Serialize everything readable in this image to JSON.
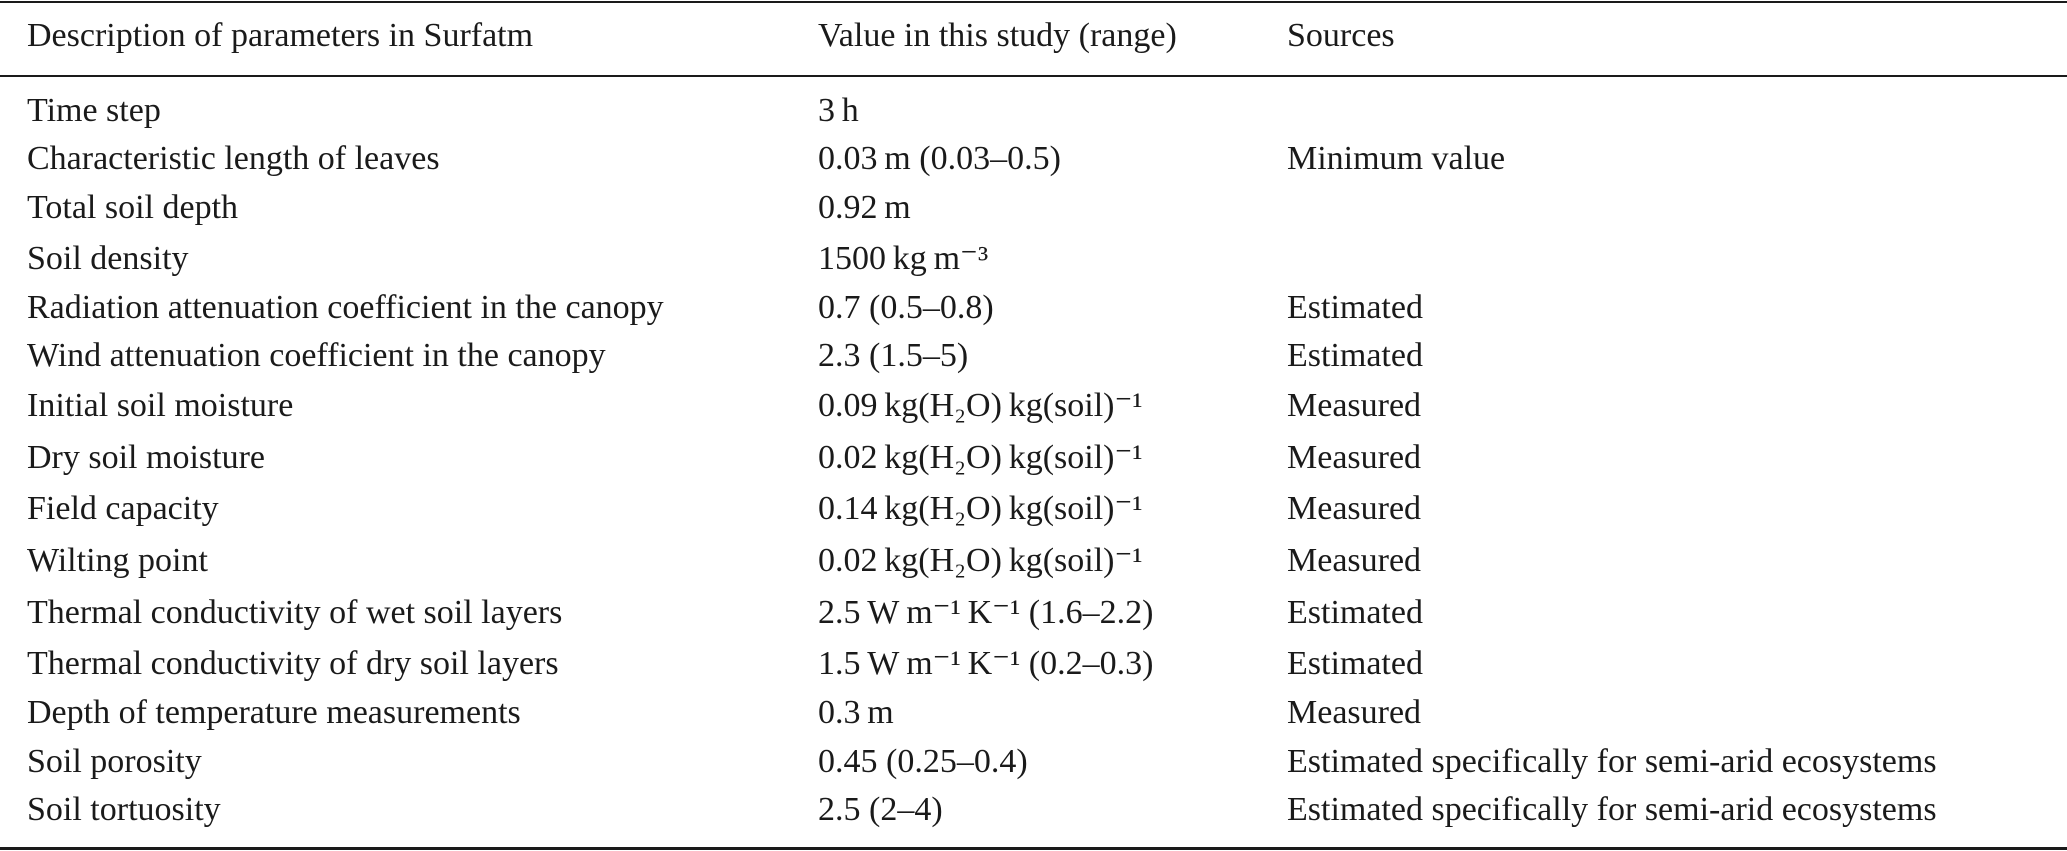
{
  "headers": [
    "Description of parameters in Surfatm",
    "Value in this study (range)",
    "Sources"
  ],
  "rows": [
    {
      "description": "Time step",
      "value": "3 h",
      "source": ""
    },
    {
      "description": "Characteristic length of leaves",
      "value": "0.03 m (0.03–0.5)",
      "source": "Minimum value"
    },
    {
      "description": "Total soil depth",
      "value": "0.92 m",
      "source": ""
    },
    {
      "description": "Soil density",
      "value": "1500 kg m⁻³",
      "source": ""
    },
    {
      "description": "Radiation attenuation coefficient in the canopy",
      "value": "0.7 (0.5–0.8)",
      "source": "Estimated"
    },
    {
      "description": "Wind attenuation coefficient in the canopy",
      "value": "2.3 (1.5–5)",
      "source": "Estimated"
    },
    {
      "description": "Initial soil moisture",
      "value": "0.09 kg(H₂O) kg(soil)⁻¹",
      "source": "Measured"
    },
    {
      "description": "Dry soil moisture",
      "value": "0.02 kg(H₂O) kg(soil)⁻¹",
      "source": "Measured"
    },
    {
      "description": "Field capacity",
      "value": "0.14 kg(H₂O) kg(soil)⁻¹",
      "source": "Measured"
    },
    {
      "description": "Wilting point",
      "value": "0.02 kg(H₂O) kg(soil)⁻¹",
      "source": "Measured"
    },
    {
      "description": "Thermal conductivity of wet soil layers",
      "value": "2.5 W m⁻¹ K⁻¹ (1.6–2.2)",
      "source": "Estimated"
    },
    {
      "description": "Thermal conductivity of dry soil layers",
      "value": "1.5 W m⁻¹ K⁻¹ (0.2–0.3)",
      "source": "Estimated"
    },
    {
      "description": "Depth of temperature measurements",
      "value": "0.3 m",
      "source": "Measured"
    },
    {
      "description": "Soil porosity",
      "value": "0.45 (0.25–0.4)",
      "source": "Estimated specifically for semi-arid ecosystems"
    },
    {
      "description": "Soil tortuosity",
      "value": "2.5 (2–4)",
      "source": "Estimated specifically for semi-arid ecosystems"
    }
  ]
}
